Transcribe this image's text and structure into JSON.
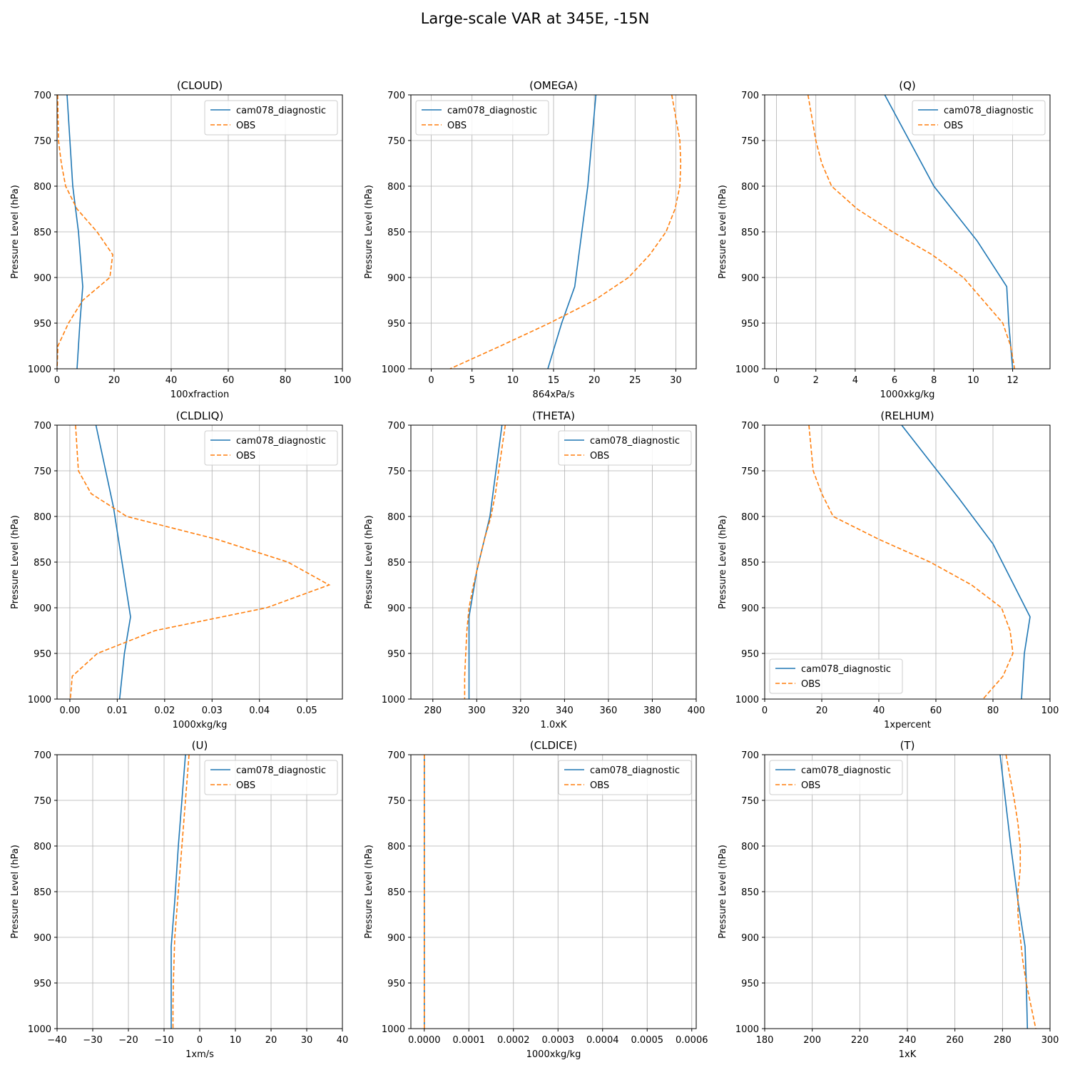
{
  "figure_title": "Large-scale VAR at 345E, -15N",
  "colors": {
    "model": "#1f77b4",
    "obs": "#ff7f0e",
    "grid": "#b0b0b0"
  },
  "chart_data": [
    {
      "type": "line",
      "title": "(CLOUD)",
      "xlabel": "100xfraction",
      "ylabel": "Pressure Level (hPa)",
      "xlim": [
        0,
        100
      ],
      "ylim": [
        1000,
        700
      ],
      "xticks": [
        0,
        20,
        40,
        60,
        80,
        100
      ],
      "xtick_labels": [
        "0",
        "20",
        "40",
        "60",
        "80",
        "100"
      ],
      "yticks": [
        700,
        750,
        800,
        850,
        900,
        950,
        1000
      ],
      "grid": true,
      "legend": "top-right",
      "series": [
        {
          "name": "cam078_diagnostic",
          "style": "solid",
          "x": [
            3.5,
            5.5,
            7.5,
            9,
            8,
            7
          ],
          "y": [
            700,
            800,
            850,
            910,
            950,
            1000
          ]
        },
        {
          "name": "OBS",
          "style": "dashed",
          "x": [
            0.2,
            0.5,
            1.5,
            3,
            7,
            14,
            19.5,
            18.5,
            9,
            4,
            0.3,
            0
          ],
          "y": [
            700,
            750,
            775,
            800,
            825,
            850,
            875,
            900,
            925,
            950,
            975,
            1000
          ]
        }
      ]
    },
    {
      "type": "line",
      "title": "(OMEGA)",
      "xlabel": "864xPa/s",
      "ylabel": "Pressure Level (hPa)",
      "xlim": [
        -2.5,
        32.5
      ],
      "ylim": [
        1000,
        700
      ],
      "xticks": [
        0,
        5,
        10,
        15,
        20,
        25,
        30
      ],
      "xtick_labels": [
        "0",
        "5",
        "10",
        "15",
        "20",
        "25",
        "30"
      ],
      "yticks": [
        700,
        750,
        800,
        850,
        900,
        950,
        1000
      ],
      "grid": true,
      "legend": "top-left",
      "series": [
        {
          "name": "cam078_diagnostic",
          "style": "solid",
          "x": [
            20.2,
            19.2,
            17.6,
            16,
            14.3
          ],
          "y": [
            700,
            800,
            910,
            950,
            1000
          ]
        },
        {
          "name": "OBS",
          "style": "dashed",
          "x": [
            29.5,
            30.5,
            30.6,
            30.5,
            29.9,
            28.8,
            26.8,
            24.2,
            20,
            14.5,
            8.5,
            2.3
          ],
          "y": [
            700,
            750,
            775,
            800,
            825,
            850,
            875,
            900,
            925,
            950,
            975,
            1000
          ]
        }
      ]
    },
    {
      "type": "line",
      "title": "(Q)",
      "xlabel": "1000xkg/kg",
      "ylabel": "Pressure Level (hPa)",
      "xlim": [
        -0.6,
        13.9
      ],
      "ylim": [
        1000,
        700
      ],
      "xticks": [
        0,
        2,
        4,
        6,
        8,
        10,
        12
      ],
      "xtick_labels": [
        "0",
        "2",
        "4",
        "6",
        "8",
        "10",
        "12"
      ],
      "yticks": [
        700,
        750,
        800,
        850,
        900,
        950,
        1000
      ],
      "grid": true,
      "legend": "top-right",
      "series": [
        {
          "name": "cam078_diagnostic",
          "style": "solid",
          "x": [
            5.5,
            8,
            10.2,
            11.7,
            11.8,
            12
          ],
          "y": [
            700,
            800,
            860,
            910,
            950,
            1000
          ]
        },
        {
          "name": "OBS",
          "style": "dashed",
          "x": [
            1.6,
            2,
            2.3,
            2.8,
            4.1,
            5.9,
            7.9,
            9.5,
            10.5,
            11.5,
            11.9,
            12.1
          ],
          "y": [
            700,
            750,
            775,
            800,
            825,
            850,
            875,
            900,
            925,
            950,
            975,
            1000
          ]
        }
      ]
    },
    {
      "type": "line",
      "title": "(CLDLIQ)",
      "xlabel": "1000xkg/kg",
      "ylabel": "Pressure Level (hPa)",
      "xlim": [
        -0.0027,
        0.0575
      ],
      "ylim": [
        1000,
        700
      ],
      "xticks": [
        0,
        0.01,
        0.02,
        0.03,
        0.04,
        0.05
      ],
      "xtick_labels": [
        "0.00",
        "0.01",
        "0.02",
        "0.03",
        "0.04",
        "0.05"
      ],
      "yticks": [
        700,
        750,
        800,
        850,
        900,
        950,
        1000
      ],
      "grid": true,
      "legend": "top-right",
      "series": [
        {
          "name": "cam078_diagnostic",
          "style": "solid",
          "x": [
            0.0055,
            0.0092,
            0.0128,
            0.0115,
            0.0105
          ],
          "y": [
            700,
            790,
            910,
            950,
            1000
          ]
        },
        {
          "name": "OBS",
          "style": "dashed",
          "x": [
            0.0012,
            0.0018,
            0.0045,
            0.012,
            0.031,
            0.046,
            0.0547,
            0.0415,
            0.018,
            0.0058,
            0.0005,
            0.0001
          ],
          "y": [
            700,
            750,
            775,
            800,
            825,
            850,
            875,
            900,
            925,
            950,
            975,
            1000
          ]
        }
      ]
    },
    {
      "type": "line",
      "title": "(THETA)",
      "xlabel": "1.0xK",
      "ylabel": "Pressure Level (hPa)",
      "xlim": [
        270,
        400
      ],
      "ylim": [
        1000,
        700
      ],
      "xticks": [
        280,
        300,
        320,
        340,
        360,
        380,
        400
      ],
      "xtick_labels": [
        "280",
        "300",
        "320",
        "340",
        "360",
        "380",
        "400"
      ],
      "yticks": [
        700,
        750,
        800,
        850,
        900,
        950,
        1000
      ],
      "grid": true,
      "legend": "top-right",
      "series": [
        {
          "name": "cam078_diagnostic",
          "style": "solid",
          "x": [
            311.5,
            306,
            300,
            296.5,
            296.5,
            296.5
          ],
          "y": [
            700,
            800,
            860,
            910,
            950,
            1000
          ]
        },
        {
          "name": "OBS",
          "style": "dashed",
          "x": [
            313,
            310,
            308.5,
            306.5,
            303.5,
            301,
            298.5,
            296.5,
            295.5,
            295,
            294.5,
            294.5
          ],
          "y": [
            700,
            750,
            775,
            800,
            825,
            850,
            875,
            900,
            925,
            950,
            975,
            1000
          ]
        }
      ]
    },
    {
      "type": "line",
      "title": "(RELHUM)",
      "xlabel": "1xpercent",
      "ylabel": "Pressure Level (hPa)",
      "xlim": [
        0,
        100
      ],
      "ylim": [
        1000,
        700
      ],
      "xticks": [
        0,
        20,
        40,
        60,
        80,
        100
      ],
      "xtick_labels": [
        "0",
        "20",
        "40",
        "60",
        "80",
        "100"
      ],
      "yticks": [
        700,
        750,
        800,
        850,
        900,
        950,
        1000
      ],
      "grid": true,
      "legend": "bottom-left",
      "series": [
        {
          "name": "cam078_diagnostic",
          "style": "solid",
          "x": [
            48,
            68,
            80,
            93,
            91,
            90
          ],
          "y": [
            700,
            780,
            830,
            910,
            950,
            1000
          ]
        },
        {
          "name": "OBS",
          "style": "dashed",
          "x": [
            15.5,
            17,
            20,
            24,
            40,
            58,
            72.5,
            83,
            86,
            87,
            83.5,
            76.5
          ],
          "y": [
            700,
            750,
            775,
            800,
            825,
            850,
            875,
            900,
            925,
            950,
            975,
            1000
          ]
        }
      ]
    },
    {
      "type": "line",
      "title": "(U)",
      "xlabel": "1xm/s",
      "ylabel": "Pressure Level (hPa)",
      "xlim": [
        -40,
        40
      ],
      "ylim": [
        1000,
        700
      ],
      "xticks": [
        -40,
        -30,
        -20,
        -10,
        0,
        10,
        20,
        30,
        40
      ],
      "xtick_labels": [
        "−40",
        "−30",
        "−20",
        "−10",
        "0",
        "10",
        "20",
        "30",
        "40"
      ],
      "yticks": [
        700,
        750,
        800,
        850,
        900,
        950,
        1000
      ],
      "grid": true,
      "legend": "top-right",
      "series": [
        {
          "name": "cam078_diagnostic",
          "style": "solid",
          "x": [
            -4,
            -6,
            -7,
            -8,
            -8,
            -8
          ],
          "y": [
            700,
            800,
            860,
            910,
            950,
            1000
          ]
        },
        {
          "name": "OBS",
          "style": "dashed",
          "x": [
            -3,
            -4,
            -4.5,
            -5,
            -5.5,
            -6,
            -6.5,
            -7,
            -7.2,
            -7.4,
            -7.5,
            -7.5
          ],
          "y": [
            700,
            750,
            775,
            800,
            825,
            850,
            875,
            900,
            925,
            950,
            975,
            1000
          ]
        }
      ]
    },
    {
      "type": "line",
      "title": "(CLDICE)",
      "xlabel": "1000xkg/kg",
      "ylabel": "Pressure Level (hPa)",
      "xlim": [
        -3e-05,
        0.00061
      ],
      "ylim": [
        1000,
        700
      ],
      "xticks": [
        0,
        0.0001,
        0.0002,
        0.0003,
        0.0004,
        0.0005,
        0.0006
      ],
      "xtick_labels": [
        "0.0000",
        "0.0001",
        "0.0002",
        "0.0003",
        "0.0004",
        "0.0005",
        "0.0006"
      ],
      "yticks": [
        700,
        750,
        800,
        850,
        900,
        950,
        1000
      ],
      "grid": true,
      "legend": "top-right",
      "series": [
        {
          "name": "cam078_diagnostic",
          "style": "solid",
          "x": [
            0,
            0
          ],
          "y": [
            700,
            1000
          ]
        },
        {
          "name": "OBS",
          "style": "dashed",
          "x": [
            0,
            0
          ],
          "y": [
            700,
            1000
          ]
        }
      ]
    },
    {
      "type": "line",
      "title": "(T)",
      "xlabel": "1xK",
      "ylabel": "Pressure Level (hPa)",
      "xlim": [
        180,
        300
      ],
      "ylim": [
        1000,
        700
      ],
      "xticks": [
        180,
        200,
        220,
        240,
        260,
        280,
        300
      ],
      "xtick_labels": [
        "180",
        "200",
        "220",
        "240",
        "260",
        "280",
        "300"
      ],
      "yticks": [
        700,
        750,
        800,
        850,
        900,
        950,
        1000
      ],
      "grid": true,
      "legend": "top-left",
      "series": [
        {
          "name": "cam078_diagnostic",
          "style": "solid",
          "x": [
            279,
            283.5,
            286.5,
            289.5,
            290,
            290.5
          ],
          "y": [
            700,
            800,
            860,
            910,
            950,
            1000
          ]
        },
        {
          "name": "OBS",
          "style": "dashed",
          "x": [
            281.5,
            285,
            286.5,
            287.5,
            287.5,
            286.5,
            286.5,
            287.5,
            288.5,
            290,
            292,
            294
          ],
          "y": [
            700,
            750,
            775,
            800,
            825,
            850,
            875,
            900,
            925,
            950,
            975,
            1000
          ]
        }
      ]
    }
  ]
}
